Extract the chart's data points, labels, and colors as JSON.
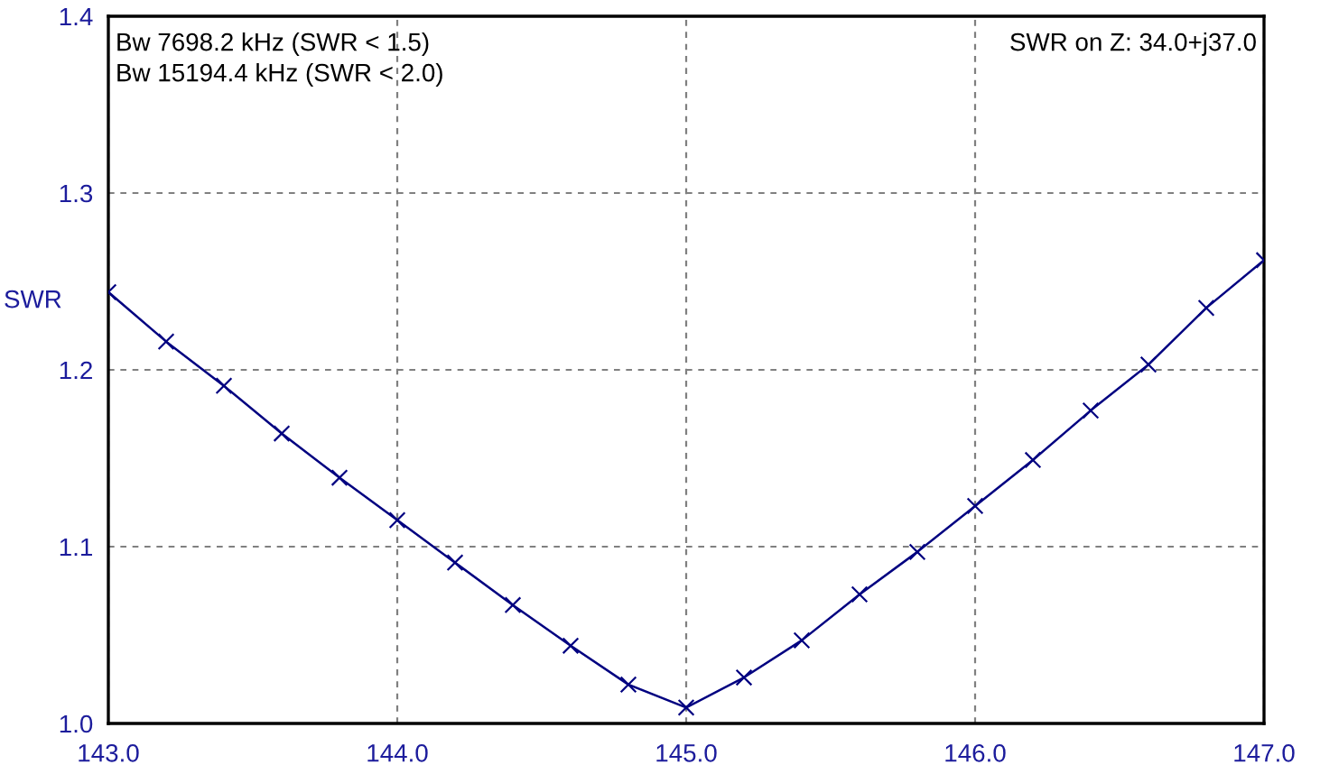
{
  "chart_data": {
    "type": "line",
    "ylabel": "SWR",
    "annotations": [
      "Bw 7698.2 kHz (SWR < 1.5)",
      "Bw 15194.4 kHz (SWR < 2.0)",
      "SWR on Z: 34.0+j37.0"
    ],
    "x": [
      143.0,
      143.2,
      143.4,
      143.6,
      143.8,
      144.0,
      144.2,
      144.4,
      144.6,
      144.8,
      145.0,
      145.2,
      145.4,
      145.6,
      145.8,
      146.0,
      146.2,
      146.4,
      146.6,
      146.8,
      147.0
    ],
    "series": [
      {
        "color": "#000080",
        "values": [
          1.244,
          1.216,
          1.191,
          1.164,
          1.139,
          1.115,
          1.091,
          1.067,
          1.044,
          1.022,
          1.009,
          1.026,
          1.047,
          1.073,
          1.097,
          1.123,
          1.149,
          1.177,
          1.203,
          1.235,
          1.262
        ]
      }
    ],
    "xlim": [
      143.0,
      147.0
    ],
    "ylim": [
      1.0,
      1.4
    ],
    "xticks": [
      {
        "value": 143.0,
        "label": "143.0"
      },
      {
        "value": 144.0,
        "label": "144.0"
      },
      {
        "value": 145.0,
        "label": "145.0"
      },
      {
        "value": 146.0,
        "label": "146.0"
      },
      {
        "value": 147.0,
        "label": "147.0"
      }
    ],
    "yticks": [
      {
        "value": 1.0,
        "label": "1.0"
      },
      {
        "value": 1.1,
        "label": "1.1"
      },
      {
        "value": 1.2,
        "label": "1.2"
      },
      {
        "value": 1.3,
        "label": "1.3"
      },
      {
        "value": 1.4,
        "label": "1.4"
      }
    ],
    "grid": true,
    "marker": "cross",
    "line_style": "solid"
  }
}
